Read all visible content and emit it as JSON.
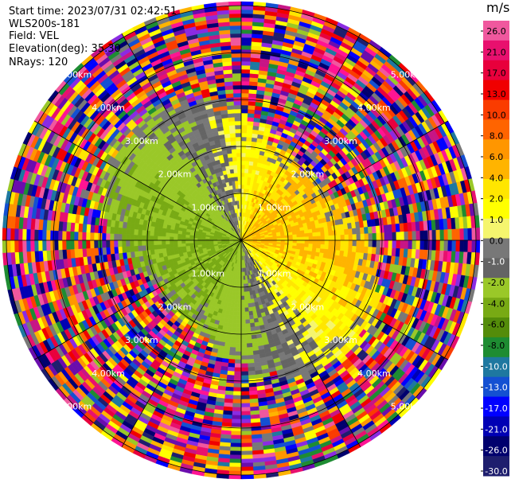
{
  "header": {
    "start_time": "Start time: 2023/07/31 02:42:51",
    "instrument": "WLS200s-181",
    "field": "Field: VEL",
    "elevation": "Elevation(deg): 35.30",
    "nrays": "NRays: 120"
  },
  "colorbar": {
    "unit": "m/s",
    "ticks": [
      "26.0",
      "21.0",
      "17.0",
      "13.0",
      "10.0",
      "8.0",
      "6.0",
      "4.0",
      "2.0",
      "1.0",
      "0.0",
      "-1.0",
      "-2.0",
      "-4.0",
      "-6.0",
      "-8.0",
      "-10.0",
      "-13.0",
      "-17.0",
      "-21.0",
      "-26.0",
      "-30.0"
    ],
    "colors": [
      "#f0589e",
      "#e8106e",
      "#e8003c",
      "#f00000",
      "#fa3c00",
      "#ff6400",
      "#ff9600",
      "#ffb400",
      "#ffe600",
      "#ffff00",
      "#f5f56e",
      "#787878",
      "#646464",
      "#9ac828",
      "#78aa14",
      "#548c0a",
      "#1e8c32",
      "#1e78a0",
      "#1450d2",
      "#0000ff",
      "#0000b4",
      "#00006e",
      "#1e1e6e"
    ]
  },
  "map": {
    "range_rings_km": [
      "1.00km",
      "2.00km",
      "3.00km",
      "4.00km",
      "5.00km"
    ],
    "nrays": 120
  }
}
